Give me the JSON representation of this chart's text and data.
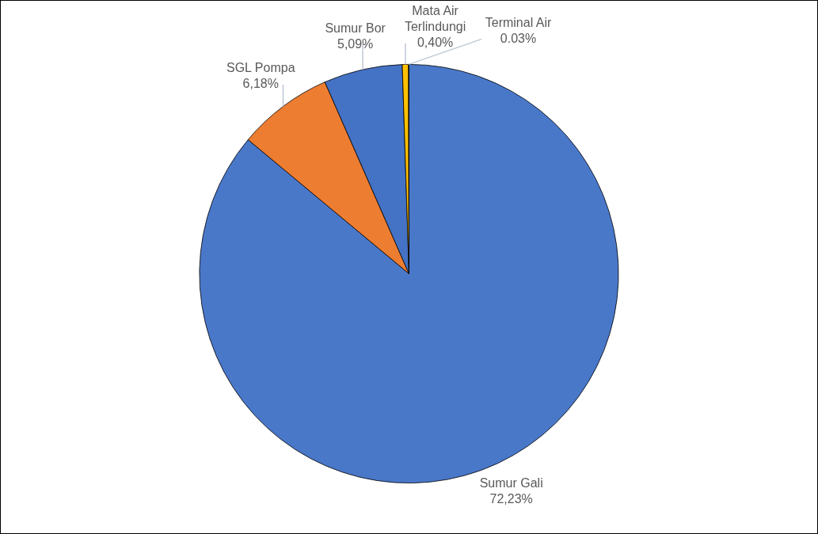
{
  "chart_data": {
    "type": "pie",
    "categories": [
      "Sumur Gali",
      "SGL Pompa",
      "Sumur Bor",
      "Mata Air Terlindungi",
      "Terminal Air"
    ],
    "values": [
      72.23,
      6.18,
      5.09,
      0.4,
      0.03
    ],
    "colors": [
      "#4a78c9",
      "#ed7d31",
      "#4472c4",
      "#ffc000",
      "#a5a5a5"
    ],
    "value_labels": [
      "72,23%",
      "6,18%",
      "5,09%",
      "0,40%",
      "0.03%"
    ],
    "legend": false
  }
}
